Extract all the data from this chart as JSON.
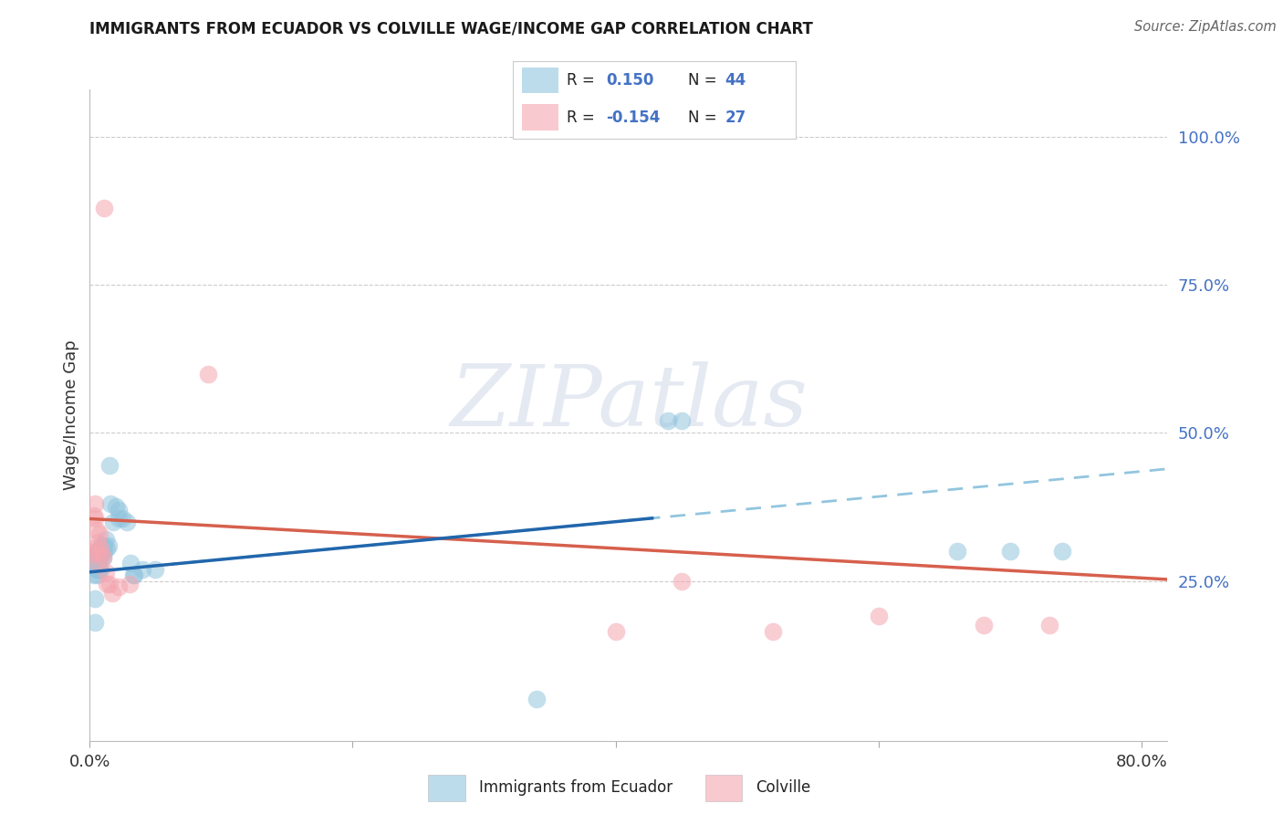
{
  "title": "IMMIGRANTS FROM ECUADOR VS COLVILLE WAGE/INCOME GAP CORRELATION CHART",
  "source": "Source: ZipAtlas.com",
  "ylabel": "Wage/Income Gap",
  "ytick_labels": [
    "25.0%",
    "50.0%",
    "75.0%",
    "100.0%"
  ],
  "ytick_values": [
    0.25,
    0.5,
    0.75,
    1.0
  ],
  "xlim": [
    0.0,
    0.82
  ],
  "ylim": [
    -0.02,
    1.08
  ],
  "blue_color": "#92c5de",
  "pink_color": "#f4a6b0",
  "blue_line_color": "#2166ac",
  "blue_dash_color": "#92c5de",
  "pink_line_color": "#d6604d",
  "blue_scatter": [
    [
      0.002,
      0.285
    ],
    [
      0.003,
      0.26
    ],
    [
      0.004,
      0.22
    ],
    [
      0.004,
      0.18
    ],
    [
      0.005,
      0.3
    ],
    [
      0.005,
      0.28
    ],
    [
      0.005,
      0.27
    ],
    [
      0.006,
      0.295
    ],
    [
      0.006,
      0.27
    ],
    [
      0.006,
      0.26
    ],
    [
      0.007,
      0.3
    ],
    [
      0.007,
      0.29
    ],
    [
      0.007,
      0.27
    ],
    [
      0.008,
      0.305
    ],
    [
      0.008,
      0.29
    ],
    [
      0.008,
      0.27
    ],
    [
      0.009,
      0.31
    ],
    [
      0.009,
      0.3
    ],
    [
      0.01,
      0.31
    ],
    [
      0.01,
      0.29
    ],
    [
      0.011,
      0.31
    ],
    [
      0.011,
      0.3
    ],
    [
      0.012,
      0.32
    ],
    [
      0.013,
      0.305
    ],
    [
      0.014,
      0.31
    ],
    [
      0.015,
      0.445
    ],
    [
      0.016,
      0.38
    ],
    [
      0.018,
      0.35
    ],
    [
      0.02,
      0.375
    ],
    [
      0.022,
      0.37
    ],
    [
      0.022,
      0.355
    ],
    [
      0.025,
      0.355
    ],
    [
      0.028,
      0.35
    ],
    [
      0.031,
      0.28
    ],
    [
      0.033,
      0.26
    ],
    [
      0.034,
      0.26
    ],
    [
      0.04,
      0.27
    ],
    [
      0.05,
      0.27
    ],
    [
      0.34,
      0.05
    ],
    [
      0.44,
      0.52
    ],
    [
      0.45,
      0.52
    ],
    [
      0.66,
      0.3
    ],
    [
      0.7,
      0.3
    ],
    [
      0.74,
      0.3
    ]
  ],
  "pink_scatter": [
    [
      0.002,
      0.295
    ],
    [
      0.003,
      0.36
    ],
    [
      0.003,
      0.305
    ],
    [
      0.004,
      0.38
    ],
    [
      0.004,
      0.355
    ],
    [
      0.005,
      0.335
    ],
    [
      0.005,
      0.3
    ],
    [
      0.006,
      0.315
    ],
    [
      0.006,
      0.28
    ],
    [
      0.007,
      0.33
    ],
    [
      0.008,
      0.305
    ],
    [
      0.009,
      0.295
    ],
    [
      0.01,
      0.29
    ],
    [
      0.012,
      0.265
    ],
    [
      0.013,
      0.245
    ],
    [
      0.015,
      0.245
    ],
    [
      0.017,
      0.23
    ],
    [
      0.022,
      0.24
    ],
    [
      0.03,
      0.245
    ],
    [
      0.011,
      0.88
    ],
    [
      0.09,
      0.6
    ],
    [
      0.45,
      0.25
    ],
    [
      0.52,
      0.165
    ],
    [
      0.6,
      0.19
    ],
    [
      0.68,
      0.175
    ],
    [
      0.73,
      0.175
    ],
    [
      0.4,
      0.165
    ]
  ],
  "blue_R": 0.15,
  "blue_N": 44,
  "pink_R": -0.154,
  "pink_N": 27,
  "watermark": "ZIPatlas",
  "bg_color": "#ffffff",
  "grid_color": "#cccccc",
  "ytick_color": "#4472c4",
  "title_color": "#1a1a1a",
  "source_color": "#666666"
}
